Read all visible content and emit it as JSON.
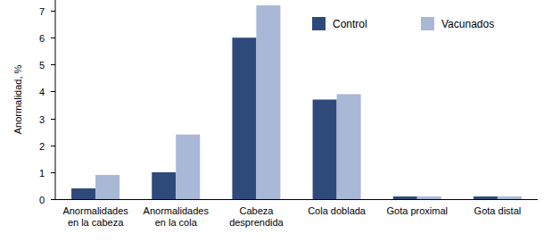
{
  "chart_data": {
    "type": "bar",
    "y_label": "Anormalidad, %",
    "categories": [
      "Anormalidades en la cabeza",
      "Anormalidades en la cola",
      "Cabeza desprendida",
      "Cola doblada",
      "Gota proximal",
      "Gota distal"
    ],
    "series": [
      {
        "name": "Control",
        "color": "#2e4a7b",
        "values": [
          0.4,
          1.0,
          6.0,
          3.7,
          0.1,
          0.1
        ]
      },
      {
        "name": "Vacunados",
        "color": "#a8b8d6",
        "values": [
          0.9,
          2.4,
          7.2,
          3.9,
          0.1,
          0.1
        ]
      }
    ],
    "ylim": [
      0,
      7.4
    ],
    "yticks": [
      0,
      1,
      2,
      3,
      4,
      5,
      6,
      7
    ],
    "grid": false,
    "legend": "upper right"
  }
}
